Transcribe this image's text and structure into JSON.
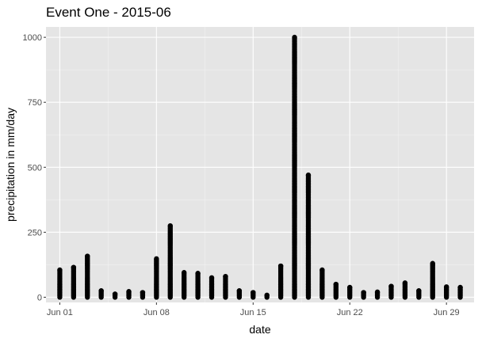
{
  "chart_data": {
    "type": "scatter",
    "title": "Event One - 2015-06",
    "xlabel": "date",
    "ylabel": "precipitation in mm/day",
    "xlim": [
      "2015-05-31",
      "2015-07-01"
    ],
    "ylim": [
      -20,
      1040
    ],
    "x_ticks": [
      {
        "date": "2015-06-01",
        "label": "Jun 01"
      },
      {
        "date": "2015-06-08",
        "label": "Jun 08"
      },
      {
        "date": "2015-06-15",
        "label": "Jun 15"
      },
      {
        "date": "2015-06-22",
        "label": "Jun 22"
      },
      {
        "date": "2015-06-29",
        "label": "Jun 29"
      }
    ],
    "y_ticks": [
      0,
      250,
      500,
      750,
      1000
    ],
    "grid": true,
    "legend": "none",
    "point_color": "#000000",
    "panel_color": "#e5e5e5",
    "series": [
      {
        "daily_max": [
          {
            "date": "2015-06-01",
            "max": 105
          },
          {
            "date": "2015-06-02",
            "max": 115
          },
          {
            "date": "2015-06-03",
            "max": 158
          },
          {
            "date": "2015-06-04",
            "max": 25
          },
          {
            "date": "2015-06-05",
            "max": 12
          },
          {
            "date": "2015-06-06",
            "max": 22
          },
          {
            "date": "2015-06-07",
            "max": 18
          },
          {
            "date": "2015-06-08",
            "max": 148
          },
          {
            "date": "2015-06-09",
            "max": 275
          },
          {
            "date": "2015-06-10",
            "max": 95
          },
          {
            "date": "2015-06-11",
            "max": 92
          },
          {
            "date": "2015-06-12",
            "max": 75
          },
          {
            "date": "2015-06-13",
            "max": 80
          },
          {
            "date": "2015-06-14",
            "max": 25
          },
          {
            "date": "2015-06-15",
            "max": 18
          },
          {
            "date": "2015-06-16",
            "max": 8
          },
          {
            "date": "2015-06-17",
            "max": 120
          },
          {
            "date": "2015-06-18",
            "max": 1000
          },
          {
            "date": "2015-06-19",
            "max": 470
          },
          {
            "date": "2015-06-20",
            "max": 105
          },
          {
            "date": "2015-06-21",
            "max": 50
          },
          {
            "date": "2015-06-22",
            "max": 38
          },
          {
            "date": "2015-06-23",
            "max": 18
          },
          {
            "date": "2015-06-24",
            "max": 20
          },
          {
            "date": "2015-06-25",
            "max": 42
          },
          {
            "date": "2015-06-26",
            "max": 55
          },
          {
            "date": "2015-06-27",
            "max": 25
          },
          {
            "date": "2015-06-28",
            "max": 130
          },
          {
            "date": "2015-06-29",
            "max": 40
          },
          {
            "date": "2015-06-30",
            "max": 38
          }
        ]
      }
    ]
  }
}
